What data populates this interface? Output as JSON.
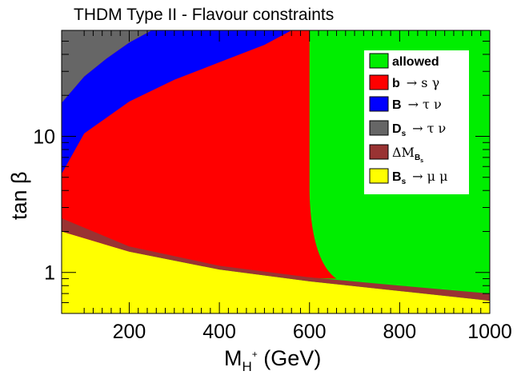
{
  "chart_data": {
    "type": "area",
    "title": "THDM Type II - Flavour constraints",
    "xlabel": "M_H+ (GeV)",
    "ylabel": "tan β",
    "xlim": [
      50,
      1000
    ],
    "ylim": [
      0.5,
      60
    ],
    "yscale": "log",
    "x_ticks": [
      200,
      400,
      600,
      800,
      1000
    ],
    "y_ticks": [
      1,
      10
    ],
    "legend_position": "top-right",
    "regions": [
      {
        "name": "allowed",
        "label": "allowed",
        "color": "#00ee00"
      },
      {
        "name": "b -> s gamma",
        "label": "b → s γ",
        "color": "#ff0000",
        "boundary_x": [
          50,
          100,
          200,
          300,
          400,
          500,
          550,
          590,
          600,
          610,
          630,
          660
        ],
        "boundary_tanb": [
          2.0,
          1.74,
          1.42,
          1.23,
          1.1,
          0.99,
          0.95,
          0.92,
          0.92,
          0.91,
          0.905,
          0.9
        ],
        "mass_limit_GeV": 600
      },
      {
        "name": "B -> tau nu",
        "label": "B → τ ν",
        "color": "#0000ff",
        "upper_x": [
          50,
          100,
          200,
          300,
          400,
          500,
          560
        ],
        "upper_tanb": [
          5.3,
          10.5,
          18,
          26,
          35,
          47,
          60
        ],
        "lower_x": [
          50,
          100,
          150,
          200,
          250
        ],
        "lower_tanb": [
          17.6,
          27.5,
          37.3,
          48.8,
          60
        ]
      },
      {
        "name": "Ds -> tau nu",
        "label": "D_s → τ ν",
        "color": "#666666"
      },
      {
        "name": "Delta M_Bs",
        "label": "ΔM_Bs",
        "color": "#993333",
        "upper_x": [
          50,
          200,
          400,
          600,
          800,
          1000
        ],
        "upper_tanb": [
          2.5,
          1.55,
          1.12,
          0.92,
          0.8,
          0.7
        ],
        "lower_x": [
          50,
          200,
          400,
          600,
          800,
          1000
        ],
        "lower_tanb": [
          2.0,
          1.42,
          1.05,
          0.86,
          0.73,
          0.62
        ]
      },
      {
        "name": "Bs -> mu mu",
        "label": "B_s → μ μ",
        "color": "#ffff00"
      }
    ]
  },
  "legend": {
    "allowed": "allowed",
    "bsg_a": "b",
    "bsg_b": "→ s γ",
    "btn_a": "B",
    "btn_b": "→ τ ν",
    "dtn_a": "D",
    "dtn_sub": "s",
    "dtn_b": "→ τ ν",
    "dm_a": "ΔM",
    "dm_sub": "B",
    "dm_subsub": "s",
    "bmm_a": "B",
    "bmm_sub": "s",
    "bmm_b": "→ μ μ"
  },
  "axes": {
    "x_title_main": "M",
    "x_title_sub": "H",
    "x_title_sup": "+",
    "x_title_unit": " (GeV)",
    "y_title": "tan β"
  }
}
